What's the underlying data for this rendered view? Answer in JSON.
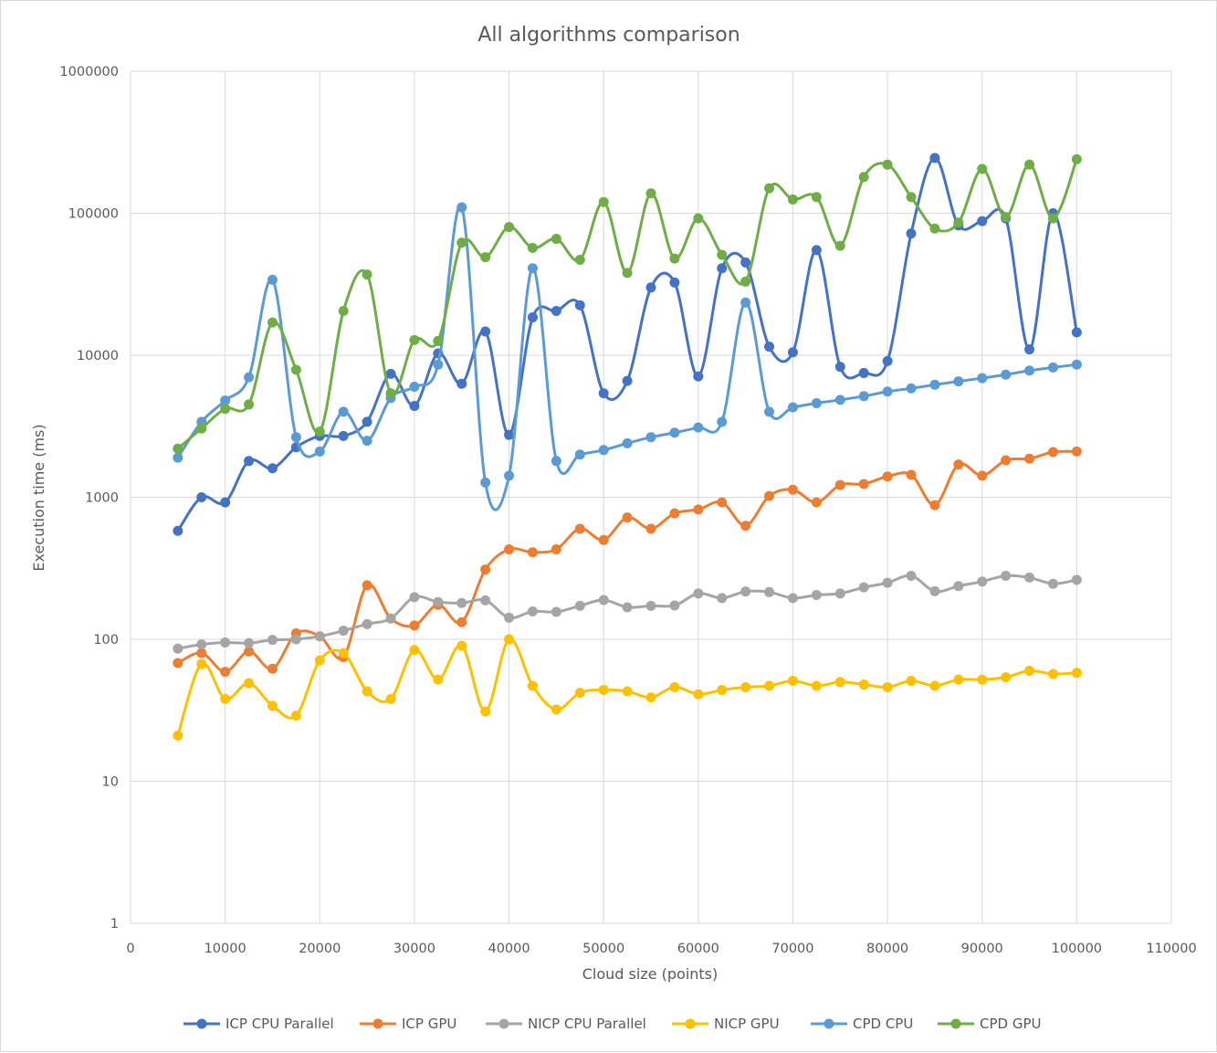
{
  "chart_data": {
    "type": "line",
    "title": "All algorithms comparison",
    "xlabel": "Cloud size (points)",
    "ylabel": "Execution time (ms)",
    "xlim": [
      0,
      110000
    ],
    "ylim": [
      1,
      1000000
    ],
    "yscale": "log",
    "grid": true,
    "legend": "bottom",
    "smooth": true,
    "xticks": [
      "0",
      "10000",
      "20000",
      "30000",
      "40000",
      "50000",
      "60000",
      "70000",
      "80000",
      "90000",
      "100000",
      "110000"
    ],
    "yticks": [
      "1",
      "10",
      "100",
      "1000",
      "10000",
      "100000",
      "1000000"
    ],
    "x": [
      5000,
      7500,
      10000,
      12500,
      15000,
      17500,
      20000,
      22500,
      25000,
      27500,
      30000,
      32500,
      35000,
      37500,
      40000,
      42500,
      45000,
      47500,
      50000,
      52500,
      55000,
      57500,
      60000,
      62500,
      65000,
      67500,
      70000,
      72500,
      75000,
      77500,
      80000,
      82500,
      85000,
      87500,
      90000,
      92500,
      95000,
      97500,
      100000
    ],
    "series": [
      {
        "name": "ICP CPU Parallel",
        "color": "#4472c4",
        "values": [
          580,
          1000,
          920,
          1800,
          1600,
          2250,
          2700,
          2700,
          3400,
          7400,
          4400,
          10300,
          6300,
          14700,
          2750,
          18500,
          20500,
          22500,
          5400,
          6600,
          30000,
          32500,
          7100,
          41000,
          45000,
          11500,
          10500,
          55000,
          8300,
          7500,
          9100,
          72000,
          245000,
          82000,
          88000,
          92000,
          11000,
          100000,
          14500
        ]
      },
      {
        "name": "ICP GPU",
        "color": "#ed7d31",
        "values": [
          68,
          80,
          59,
          82,
          62,
          110,
          105,
          75,
          240,
          140,
          125,
          175,
          132,
          310,
          430,
          410,
          430,
          600,
          500,
          720,
          600,
          770,
          820,
          920,
          630,
          1020,
          1130,
          920,
          1220,
          1240,
          1400,
          1440,
          880,
          1700,
          1420,
          1820,
          1870,
          2080,
          2100
        ]
      },
      {
        "name": "NICP CPU Parallel",
        "color": "#a5a5a5",
        "values": [
          86,
          92,
          95,
          94,
          99,
          100,
          105,
          115,
          128,
          140,
          198,
          183,
          180,
          188,
          142,
          157,
          156,
          172,
          189,
          168,
          172,
          173,
          210,
          195,
          217,
          215,
          195,
          205,
          210,
          232,
          250,
          280,
          218,
          237,
          255,
          280,
          272,
          246,
          262
        ]
      },
      {
        "name": "NICP GPU",
        "color": "#ffc000",
        "values": [
          21,
          67,
          38,
          49,
          34,
          29,
          71,
          80,
          43,
          38,
          84,
          52,
          90,
          31,
          100,
          47,
          32,
          42,
          44,
          43,
          39,
          46,
          41,
          44,
          46,
          47,
          51,
          47,
          50,
          48,
          46,
          51,
          47,
          52,
          52,
          54,
          60,
          57,
          58
        ]
      },
      {
        "name": "CPD CPU",
        "color": "#5b9bd5",
        "values": [
          1900,
          3400,
          4800,
          7000,
          34000,
          2650,
          2100,
          4000,
          2500,
          5000,
          6000,
          8600,
          110000,
          1270,
          1420,
          41000,
          1800,
          2000,
          2150,
          2400,
          2650,
          2850,
          3100,
          3400,
          23500,
          4000,
          4300,
          4600,
          4850,
          5150,
          5550,
          5850,
          6200,
          6550,
          6900,
          7300,
          7800,
          8200,
          8600
        ]
      },
      {
        "name": "CPD GPU",
        "color": "#70ad47",
        "values": [
          2200,
          3050,
          4200,
          4500,
          17000,
          7900,
          2900,
          20500,
          37000,
          5400,
          12800,
          12600,
          62000,
          49000,
          80000,
          57000,
          66000,
          47000,
          120000,
          38000,
          138000,
          48000,
          92000,
          51000,
          33000,
          150000,
          125000,
          130000,
          59000,
          180000,
          220000,
          130000,
          78000,
          86000,
          205000,
          94000,
          220000,
          92000,
          240000
        ]
      }
    ]
  }
}
